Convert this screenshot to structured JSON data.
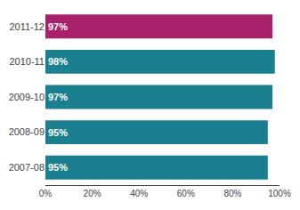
{
  "chart_data": {
    "type": "bar",
    "orientation": "horizontal",
    "categories": [
      "2011-12",
      "2010-11",
      "2009-10",
      "2008-09",
      "2007-08"
    ],
    "values": [
      97,
      98,
      97,
      95,
      95
    ],
    "value_labels": [
      "97%",
      "98%",
      "97%",
      "95%",
      "95%"
    ],
    "data_labels": true,
    "colors": [
      "#a8216b",
      "#1a7f8e",
      "#1a7f8e",
      "#1a7f8e",
      "#1a7f8e"
    ],
    "xlim": [
      0,
      100
    ],
    "xticks": [
      {
        "value": 0,
        "label": "0%"
      },
      {
        "value": 20,
        "label": "20%"
      },
      {
        "value": 40,
        "label": "40%"
      },
      {
        "value": 60,
        "label": "60%"
      },
      {
        "value": 80,
        "label": "80%"
      },
      {
        "value": 100,
        "label": "100%"
      }
    ],
    "grid": false
  }
}
